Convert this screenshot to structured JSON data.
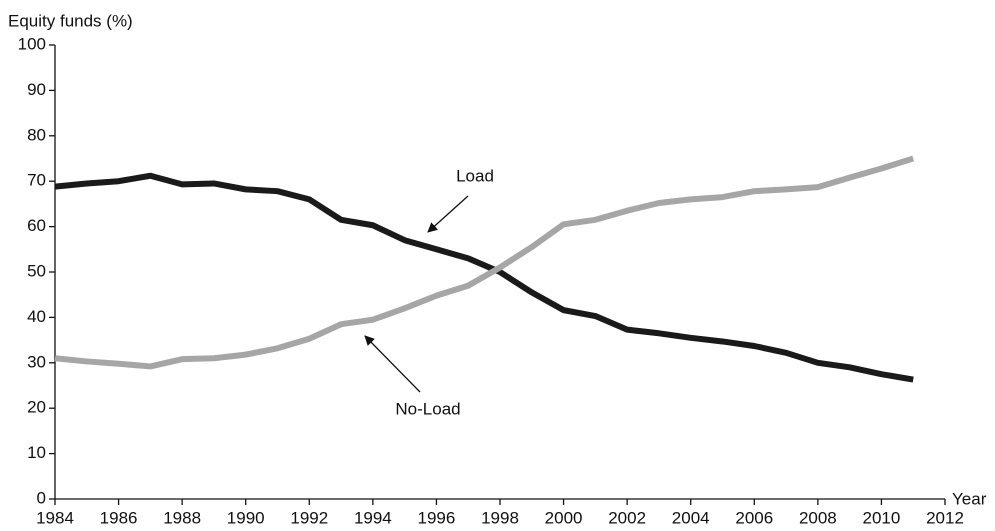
{
  "chart_data": {
    "type": "line",
    "y_label": "Equity funds (%)",
    "x_label": "Year",
    "x": [
      1984,
      1985,
      1986,
      1987,
      1988,
      1989,
      1990,
      1991,
      1992,
      1993,
      1994,
      1995,
      1996,
      1997,
      1998,
      1999,
      2000,
      2001,
      2002,
      2003,
      2004,
      2005,
      2006,
      2007,
      2008,
      2009,
      2010,
      2011
    ],
    "series": [
      {
        "name": "Load",
        "color": "#1a1a1a",
        "values": [
          68.8,
          69.5,
          70,
          71.2,
          69.3,
          69.5,
          68.2,
          67.8,
          66,
          61.5,
          60.3,
          57,
          55,
          53,
          50,
          45.5,
          41.6,
          40.3,
          37.3,
          36.5,
          35.5,
          34.7,
          33.7,
          32.2,
          30,
          29,
          27.5,
          26.3
        ]
      },
      {
        "name": "No-Load",
        "color": "#a6a6a6",
        "values": [
          31,
          30.3,
          29.8,
          29.2,
          30.8,
          31,
          31.8,
          33.2,
          35.3,
          38.5,
          39.5,
          42,
          44.8,
          47,
          51,
          55.5,
          60.5,
          61.5,
          63.5,
          65.2,
          66,
          66.5,
          67.8,
          68.2,
          68.7,
          70.8,
          72.8,
          75
        ]
      }
    ],
    "xlim": [
      1984,
      2012
    ],
    "xticks": [
      1984,
      1986,
      1988,
      1990,
      1992,
      1994,
      1996,
      1998,
      2000,
      2002,
      2004,
      2006,
      2008,
      2010,
      2012
    ],
    "ylim": [
      0,
      100
    ],
    "yticks": [
      0,
      10,
      20,
      30,
      40,
      50,
      60,
      70,
      80,
      90,
      100
    ]
  }
}
